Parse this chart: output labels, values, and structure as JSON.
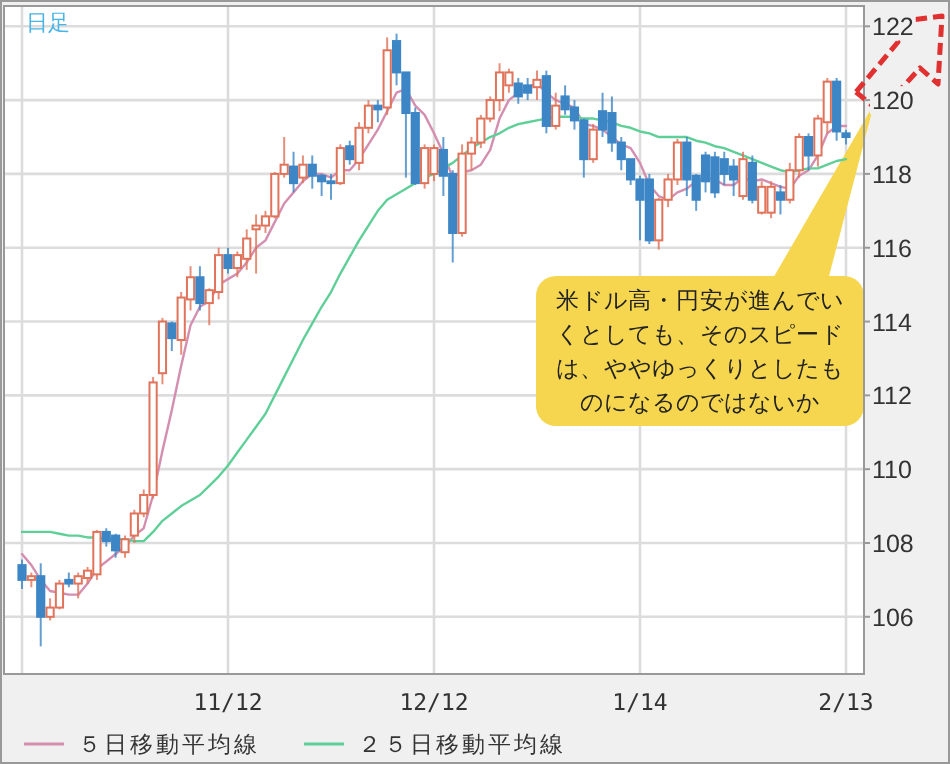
{
  "chart_data": {
    "type": "candlestick",
    "title": "日足",
    "categories": [
      null,
      null,
      null,
      null,
      null,
      null,
      null,
      null,
      null,
      null,
      null,
      null,
      null,
      null,
      null,
      null,
      null,
      null,
      null,
      null,
      null,
      null,
      "11/12",
      null,
      null,
      null,
      null,
      null,
      null,
      null,
      null,
      null,
      null,
      null,
      null,
      null,
      null,
      null,
      null,
      null,
      null,
      null,
      null,
      null,
      "12/12",
      null,
      null,
      null,
      null,
      null,
      null,
      null,
      null,
      null,
      null,
      null,
      null,
      null,
      null,
      null,
      null,
      null,
      null,
      null,
      null,
      null,
      "1/14",
      null,
      null,
      null,
      null,
      null,
      null,
      null,
      null,
      null,
      null,
      null,
      null,
      null,
      null,
      null,
      null,
      null,
      null,
      null,
      null,
      null,
      "2/13"
    ],
    "ohlc": [
      [
        107.4,
        107.55,
        106.75,
        107.0
      ],
      [
        107.0,
        107.2,
        106.8,
        107.1
      ],
      [
        107.1,
        107.45,
        105.2,
        106.0
      ],
      [
        106.0,
        106.5,
        105.9,
        106.25
      ],
      [
        106.25,
        107.0,
        106.2,
        106.9
      ],
      [
        107.0,
        107.2,
        106.8,
        106.9
      ],
      [
        106.9,
        107.2,
        106.5,
        107.1
      ],
      [
        107.05,
        107.35,
        106.9,
        107.25
      ],
      [
        107.15,
        108.35,
        107.0,
        108.3
      ],
      [
        108.3,
        108.4,
        107.9,
        108.05
      ],
      [
        108.2,
        108.25,
        107.6,
        107.8
      ],
      [
        107.75,
        108.2,
        107.6,
        108.1
      ],
      [
        108.2,
        108.9,
        108.0,
        108.8
      ],
      [
        108.8,
        109.45,
        108.7,
        109.3
      ],
      [
        109.3,
        112.5,
        109.2,
        112.35
      ],
      [
        112.6,
        114.1,
        112.3,
        114.0
      ],
      [
        113.95,
        114.0,
        113.2,
        113.55
      ],
      [
        113.5,
        114.8,
        113.1,
        114.65
      ],
      [
        114.6,
        115.5,
        114.3,
        115.2
      ],
      [
        115.2,
        115.5,
        114.3,
        114.5
      ],
      [
        114.5,
        114.9,
        113.9,
        114.85
      ],
      [
        114.8,
        116.0,
        114.6,
        115.8
      ],
      [
        115.8,
        116.0,
        115.3,
        115.45
      ],
      [
        115.45,
        115.9,
        115.2,
        115.8
      ],
      [
        115.7,
        116.5,
        115.4,
        116.25
      ],
      [
        116.5,
        116.9,
        115.3,
        116.6
      ],
      [
        116.6,
        117.0,
        116.4,
        116.85
      ],
      [
        116.85,
        118.05,
        116.8,
        118.0
      ],
      [
        118.0,
        119.0,
        117.9,
        118.25
      ],
      [
        118.2,
        118.6,
        117.5,
        117.75
      ],
      [
        117.9,
        118.5,
        117.75,
        118.25
      ],
      [
        118.25,
        118.5,
        117.6,
        117.95
      ],
      [
        117.95,
        118.0,
        117.4,
        117.8
      ],
      [
        117.8,
        118.0,
        117.3,
        117.75
      ],
      [
        117.75,
        118.8,
        117.7,
        118.7
      ],
      [
        118.75,
        118.9,
        118.25,
        118.4
      ],
      [
        118.3,
        119.4,
        118.1,
        119.25
      ],
      [
        119.25,
        120.0,
        119.1,
        119.85
      ],
      [
        119.85,
        120.0,
        119.4,
        119.75
      ],
      [
        119.8,
        121.7,
        119.6,
        121.35
      ],
      [
        121.6,
        121.8,
        120.4,
        120.75
      ],
      [
        120.75,
        120.75,
        117.9,
        119.65
      ],
      [
        119.65,
        119.8,
        117.7,
        117.75
      ],
      [
        117.75,
        118.8,
        117.6,
        118.7
      ],
      [
        118.0,
        118.8,
        117.8,
        118.7
      ],
      [
        118.65,
        119.0,
        117.4,
        117.95
      ],
      [
        118.0,
        118.1,
        115.6,
        116.4
      ],
      [
        116.4,
        118.8,
        116.3,
        118.55
      ],
      [
        118.55,
        119.0,
        118.1,
        118.85
      ],
      [
        118.85,
        119.6,
        118.7,
        119.5
      ],
      [
        119.5,
        120.1,
        119.4,
        120.0
      ],
      [
        120.0,
        121.0,
        119.7,
        120.75
      ],
      [
        120.4,
        120.85,
        120.2,
        120.75
      ],
      [
        120.45,
        120.6,
        119.9,
        120.1
      ],
      [
        120.4,
        120.6,
        120.0,
        120.2
      ],
      [
        120.35,
        120.8,
        120.0,
        120.55
      ],
      [
        120.65,
        120.8,
        119.1,
        119.3
      ],
      [
        119.3,
        120.2,
        119.2,
        119.85
      ],
      [
        120.1,
        120.4,
        119.6,
        119.75
      ],
      [
        119.8,
        120.0,
        119.2,
        119.45
      ],
      [
        119.45,
        119.5,
        117.9,
        118.4
      ],
      [
        118.4,
        119.35,
        118.3,
        119.2
      ],
      [
        119.7,
        120.2,
        119.0,
        119.2
      ],
      [
        119.65,
        120.1,
        118.6,
        118.85
      ],
      [
        118.85,
        119.0,
        118.1,
        118.4
      ],
      [
        118.4,
        118.4,
        117.7,
        117.85
      ],
      [
        117.85,
        117.95,
        116.2,
        117.3
      ],
      [
        117.85,
        118.0,
        116.1,
        116.2
      ],
      [
        116.2,
        117.35,
        115.95,
        117.3
      ],
      [
        117.3,
        118.0,
        117.1,
        117.85
      ],
      [
        117.85,
        118.95,
        117.7,
        118.85
      ],
      [
        118.85,
        119.0,
        117.4,
        117.85
      ],
      [
        117.95,
        118.0,
        117.0,
        117.3
      ],
      [
        118.5,
        118.6,
        117.5,
        117.8
      ],
      [
        118.45,
        118.6,
        117.35,
        117.5
      ],
      [
        118.4,
        118.6,
        117.7,
        118.0
      ],
      [
        118.2,
        118.4,
        117.4,
        117.85
      ],
      [
        117.4,
        118.6,
        117.3,
        118.4
      ],
      [
        118.3,
        118.5,
        117.2,
        117.3
      ],
      [
        116.95,
        117.8,
        116.9,
        117.65
      ],
      [
        116.95,
        117.8,
        116.8,
        117.65
      ],
      [
        117.5,
        117.7,
        116.9,
        117.3
      ],
      [
        117.3,
        118.3,
        117.2,
        118.1
      ],
      [
        118.1,
        119.1,
        117.9,
        119.0
      ],
      [
        119.0,
        119.1,
        118.1,
        118.5
      ],
      [
        118.5,
        119.6,
        118.2,
        119.5
      ],
      [
        119.4,
        120.6,
        119.1,
        120.5
      ],
      [
        120.5,
        120.6,
        118.9,
        119.15
      ],
      [
        119.1,
        119.2,
        118.8,
        119.0
      ]
    ],
    "colors": [
      "#3d86c6",
      "#e0735a",
      "#3d86c6",
      "#e0735a",
      "#e0735a",
      "#3d86c6",
      "#e0735a",
      "#e0735a",
      "#e0735a",
      "#3d86c6",
      "#3d86c6",
      "#e0735a",
      "#e0735a",
      "#e0735a",
      "#e0735a",
      "#e0735a",
      "#3d86c6",
      "#e0735a",
      "#e0735a",
      "#3d86c6",
      "#e0735a",
      "#e0735a",
      "#3d86c6",
      "#e0735a",
      "#e0735a",
      "#e0735a",
      "#e0735a",
      "#e0735a",
      "#e0735a",
      "#3d86c6",
      "#e0735a",
      "#3d86c6",
      "#3d86c6",
      "#3d86c6",
      "#e0735a",
      "#3d86c6",
      "#e0735a",
      "#e0735a",
      "#3d86c6",
      "#e0735a",
      "#3d86c6",
      "#3d86c6",
      "#3d86c6",
      "#e0735a",
      "#e0735a",
      "#3d86c6",
      "#3d86c6",
      "#e0735a",
      "#e0735a",
      "#e0735a",
      "#e0735a",
      "#e0735a",
      "#e0735a",
      "#3d86c6",
      "#3d86c6",
      "#e0735a",
      "#3d86c6",
      "#e0735a",
      "#3d86c6",
      "#3d86c6",
      "#3d86c6",
      "#e0735a",
      "#3d86c6",
      "#3d86c6",
      "#3d86c6",
      "#3d86c6",
      "#3d86c6",
      "#3d86c6",
      "#e0735a",
      "#e0735a",
      "#e0735a",
      "#3d86c6",
      "#3d86c6",
      "#3d86c6",
      "#3d86c6",
      "#3d86c6",
      "#3d86c6",
      "#e0735a",
      "#3d86c6",
      "#e0735a",
      "#e0735a",
      "#3d86c6",
      "#e0735a",
      "#e0735a",
      "#3d86c6",
      "#e0735a",
      "#e0735a",
      "#3d86c6",
      "#3d86c6"
    ],
    "series": [
      {
        "name": "５日移動平均線",
        "type": "line",
        "color": "#d48fb0",
        "values": [
          107.7,
          107.4,
          107.0,
          106.7,
          106.65,
          106.6,
          106.6,
          106.9,
          107.3,
          107.5,
          107.7,
          107.9,
          108.2,
          108.4,
          109.3,
          110.5,
          111.6,
          112.8,
          113.9,
          114.4,
          114.55,
          115.0,
          115.15,
          115.3,
          115.6,
          116.0,
          116.2,
          116.7,
          117.2,
          117.5,
          117.8,
          118.0,
          118.0,
          117.9,
          118.1,
          118.1,
          118.4,
          118.8,
          119.2,
          119.7,
          120.2,
          120.3,
          119.85,
          119.6,
          119.1,
          118.55,
          117.9,
          118.05,
          118.1,
          118.25,
          118.65,
          119.5,
          120.0,
          120.2,
          120.35,
          120.45,
          120.2,
          120.0,
          119.9,
          119.8,
          119.35,
          119.3,
          119.2,
          119.0,
          118.8,
          118.7,
          118.3,
          117.7,
          117.4,
          117.3,
          117.5,
          117.6,
          117.8,
          117.9,
          117.85,
          117.7,
          117.7,
          117.9,
          117.8,
          117.85,
          117.75,
          117.65,
          117.6,
          117.95,
          118.1,
          118.5,
          119.1,
          119.3,
          119.3
        ]
      },
      {
        "name": "２５日移動平均線",
        "type": "line",
        "color": "#5fcf98",
        "values": [
          108.3,
          108.3,
          108.3,
          108.3,
          108.25,
          108.2,
          108.2,
          108.15,
          108.15,
          108.1,
          108.1,
          108.1,
          108.05,
          108.05,
          108.3,
          108.6,
          108.8,
          109.0,
          109.15,
          109.3,
          109.55,
          109.8,
          110.1,
          110.45,
          110.8,
          111.15,
          111.5,
          112.0,
          112.5,
          113.0,
          113.5,
          113.95,
          114.4,
          114.8,
          115.3,
          115.75,
          116.2,
          116.6,
          117.0,
          117.3,
          117.45,
          117.6,
          117.75,
          117.9,
          118.0,
          118.15,
          118.3,
          118.5,
          118.7,
          118.85,
          119.0,
          119.1,
          119.25,
          119.35,
          119.4,
          119.45,
          119.5,
          119.55,
          119.55,
          119.55,
          119.5,
          119.5,
          119.45,
          119.4,
          119.3,
          119.25,
          119.15,
          119.1,
          119.0,
          119.0,
          119.0,
          119.0,
          118.9,
          118.85,
          118.75,
          118.7,
          118.6,
          118.5,
          118.4,
          118.3,
          118.2,
          118.1,
          118.05,
          118.1,
          118.15,
          118.15,
          118.25,
          118.35,
          118.4
        ]
      }
    ],
    "ylim": [
      104.45,
      122.55
    ],
    "yticks": [
      106,
      108,
      110,
      112,
      114,
      116,
      118,
      120,
      122
    ],
    "grid": true,
    "legend": "bottom",
    "annotations": [
      "米ドル高・円安が進んでいくとしても、そのスピードは、ややゆっくりとしたものになるのではないか"
    ]
  }
}
